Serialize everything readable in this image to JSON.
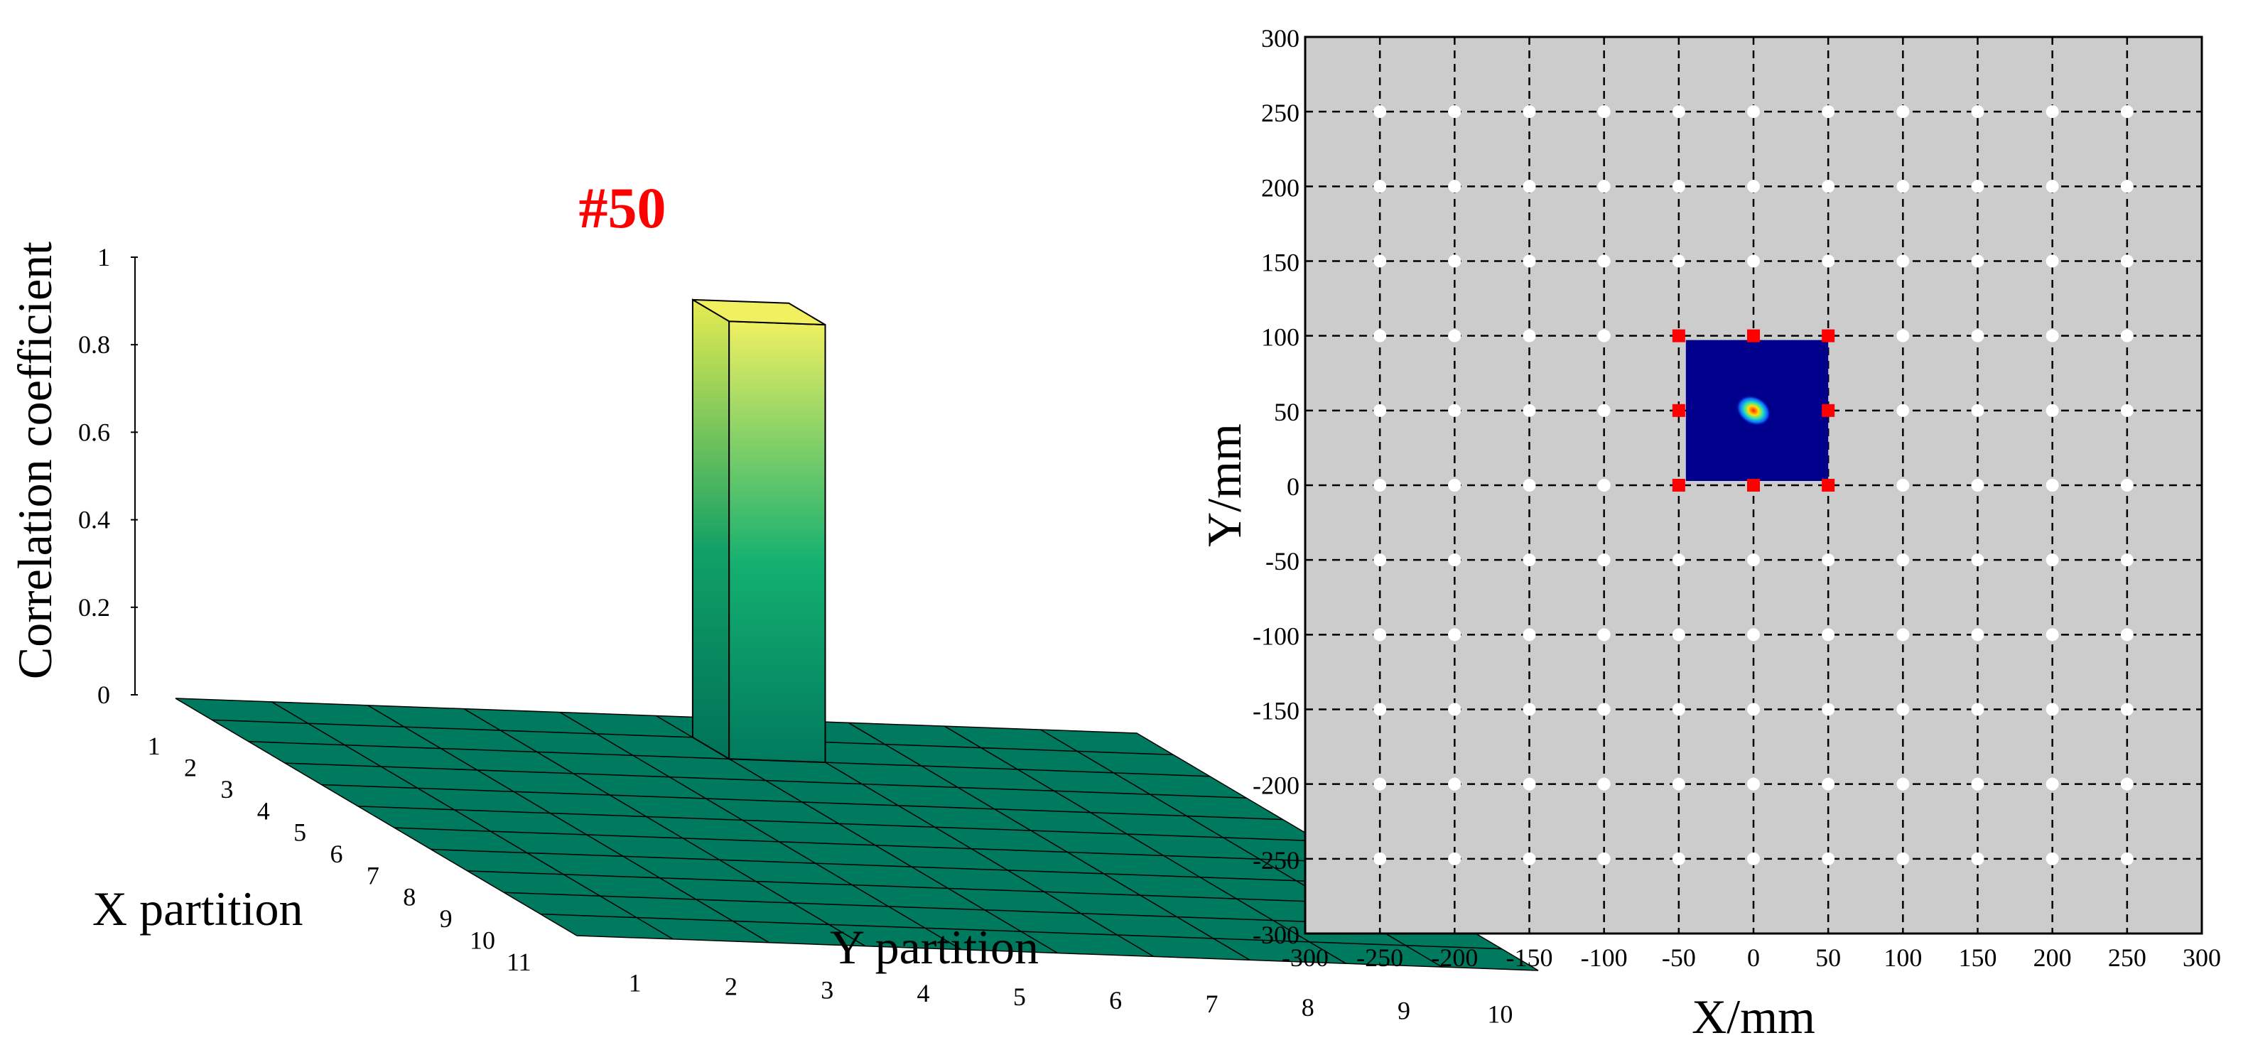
{
  "chart_data": [
    {
      "type": "bar3d",
      "zlabel": "Correlation coefficient",
      "xlabel": "X partition",
      "ylabel": "Y partition",
      "z_ticks": [
        "0",
        "0.2",
        "0.4",
        "0.6",
        "0.8",
        "1"
      ],
      "x_ticks": [
        "1",
        "2",
        "3",
        "4",
        "5",
        "6",
        "7",
        "8",
        "9",
        "10",
        "11"
      ],
      "y_ticks": [
        "1",
        "2",
        "3",
        "4",
        "5",
        "6",
        "7",
        "8",
        "9",
        "10"
      ],
      "zlim": [
        0,
        1
      ],
      "peak": {
        "label": "#50",
        "value": 1.0,
        "color": "#ff0000"
      },
      "floor_value": 0,
      "colors": {
        "floor": "#007a5e",
        "bar_top": "#f0f060",
        "bar_mid": "#14b070",
        "bar_base": "#007a5e"
      }
    },
    {
      "type": "scatter",
      "xlabel": "X/mm",
      "ylabel": "Y/mm",
      "xlim": [
        -300,
        300
      ],
      "ylim": [
        -300,
        300
      ],
      "x_ticks": [
        "-300",
        "-250",
        "-200",
        "-150",
        "-100",
        "-50",
        "0",
        "50",
        "100",
        "150",
        "200",
        "250",
        "300"
      ],
      "y_ticks": [
        "300",
        "250",
        "200",
        "150",
        "100",
        "50",
        "0",
        "-50",
        "-100",
        "-150",
        "-200",
        "-250",
        "-300"
      ],
      "grid": true,
      "background": "#cccccc",
      "sensor_grid": {
        "x": [
          -250,
          -200,
          -150,
          -100,
          -50,
          0,
          50,
          100,
          150,
          200,
          250
        ],
        "y": [
          -250,
          -200,
          -150,
          -100,
          -50,
          0,
          50,
          100,
          150,
          200,
          250
        ],
        "color": "#ffffff"
      },
      "highlight_points": {
        "points": [
          [
            -50,
            0
          ],
          [
            0,
            0
          ],
          [
            50,
            0
          ],
          [
            -50,
            50
          ],
          [
            50,
            50
          ],
          [
            -50,
            100
          ],
          [
            0,
            100
          ],
          [
            50,
            100
          ]
        ],
        "color": "#ff0000"
      },
      "heatmap_region": {
        "x": [
          -50,
          50
        ],
        "y": [
          0,
          100
        ],
        "color": "#00008c"
      },
      "hotspot": {
        "x": 0,
        "y": 50
      }
    }
  ]
}
